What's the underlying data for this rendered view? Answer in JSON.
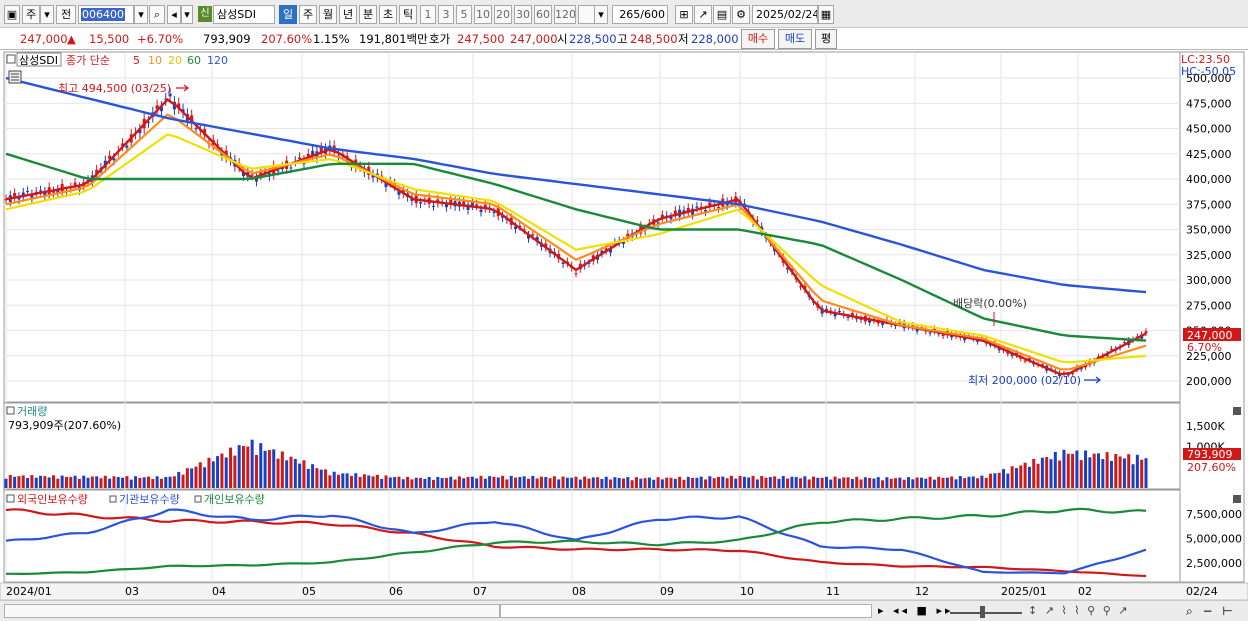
{
  "toolbar": {
    "market_label": "주",
    "prev_label": "전",
    "stock_code": "006400",
    "badge": "신",
    "stock_name": "삼성SDI",
    "periods": [
      "일",
      "주",
      "월",
      "년",
      "분",
      "초",
      "틱"
    ],
    "active_period": "일",
    "numbers": [
      "1",
      "3",
      "5",
      "10",
      "20",
      "30",
      "60",
      "120"
    ],
    "count_value": "265",
    "count_max": "/600",
    "date": "2025/02/24"
  },
  "quote": {
    "price": "247,000",
    "change": "15,500",
    "change_pct": "+6.70%",
    "volume": "793,909",
    "volume_ratio": "207.60%",
    "turnover_rate": "1.15%",
    "trade_value": "191,801백만",
    "ask_label": "호가",
    "ask_value": "247,500",
    "bid_value": "247,000",
    "open_label": "시",
    "open_value": "228,500",
    "high_label": "고",
    "high_value": "248,500",
    "low_label": "저",
    "low_value": "228,000",
    "buy_label": "매수",
    "sell_label": "매도",
    "eval_label": "평"
  },
  "price_panel": {
    "legend_name": "삼성SDI",
    "legend_close": "종가 단순",
    "legend_ma": [
      "5",
      "10",
      "20",
      "60",
      "120"
    ],
    "lc_label": "LC:23.50",
    "hc_label": "HC:-50.05",
    "high_note": "최고 494,500 (03/25)",
    "low_note": "최저 200,000 (02/10)",
    "dividend_note": "배당락(0.00%)",
    "current_price": "247,000",
    "current_pct": "6.70%",
    "y_ticks": [
      "500,000",
      "475,000",
      "450,000",
      "425,000",
      "400,000",
      "375,000",
      "350,000",
      "325,000",
      "300,000",
      "275,000",
      "250,000",
      "225,000",
      "200,000"
    ]
  },
  "volume_panel": {
    "title": "거래량",
    "value": "793,909주(207.60%)",
    "y_ticks": [
      "1,500K",
      "1,000K"
    ],
    "current_value": "793,909",
    "current_pct": "207.60%"
  },
  "holding_panel": {
    "legend": [
      "외국인보유수량",
      "기관보유수량",
      "개인보유수량"
    ],
    "y_ticks": [
      "7,500,000",
      "5,000,000",
      "2,500,000"
    ]
  },
  "x_axis": {
    "labels": [
      "2024/01",
      "03",
      "04",
      "05",
      "06",
      "07",
      "08",
      "09",
      "10",
      "11",
      "12",
      "2025/01",
      "02"
    ],
    "right_label": "02/24"
  },
  "colors": {
    "ma5": "#d01818",
    "ma10": "#ff8c1a",
    "ma20": "#f0e000",
    "ma60": "#1a8a3a",
    "ma120": "#2a55d8",
    "up": "#d01818",
    "down": "#1a3ec4"
  },
  "chart_data": {
    "type": "line",
    "x": [
      "2024/01",
      "2024/02",
      "2024/03",
      "2024/04",
      "2024/05",
      "2024/06",
      "2024/07",
      "2024/08",
      "2024/09",
      "2024/10",
      "2024/11",
      "2024/12",
      "2025/01",
      "2025/02",
      "2025/02/24"
    ],
    "series": [
      {
        "name": "5",
        "values": [
          380000,
          395000,
          480000,
          400000,
          430000,
          380000,
          370000,
          310000,
          360000,
          380000,
          270000,
          255000,
          240000,
          205000,
          247000
        ]
      },
      {
        "name": "10",
        "values": [
          375000,
          392000,
          465000,
          405000,
          425000,
          385000,
          375000,
          320000,
          355000,
          375000,
          280000,
          255000,
          242000,
          210000,
          235000
        ]
      },
      {
        "name": "20",
        "values": [
          370000,
          388000,
          445000,
          410000,
          420000,
          390000,
          378000,
          330000,
          345000,
          370000,
          295000,
          258000,
          245000,
          218000,
          225000
        ]
      },
      {
        "name": "60",
        "values": [
          425000,
          400000,
          400000,
          400000,
          415000,
          415000,
          395000,
          370000,
          350000,
          350000,
          335000,
          300000,
          262000,
          245000,
          240000
        ]
      },
      {
        "name": "120",
        "values": [
          500000,
          480000,
          460000,
          445000,
          430000,
          420000,
          405000,
          395000,
          385000,
          375000,
          358000,
          335000,
          310000,
          295000,
          288000
        ]
      }
    ],
    "volume_K": [
      320,
      300,
      280,
      1200,
      400,
      260,
      300,
      280,
      260,
      300,
      280,
      260,
      300,
      950,
      793.909
    ],
    "holdings": [
      {
        "name": "외국인보유수량",
        "values": [
          7900000,
          7300000,
          6800000,
          6700000,
          6500000,
          5500000,
          4200000,
          3900000,
          3900000,
          3800000,
          2600000,
          2200000,
          2100000,
          1700000,
          1200000
        ]
      },
      {
        "name": "기관보유수량",
        "values": [
          4700000,
          5600000,
          7900000,
          6900000,
          7400000,
          5500000,
          6800000,
          4800000,
          7000000,
          7200000,
          4200000,
          3900000,
          1600000,
          1500000,
          3800000
        ]
      },
      {
        "name": "개인보유수량",
        "values": [
          1400000,
          1600000,
          2200000,
          2300000,
          2600000,
          3600000,
          4600000,
          4700000,
          4400000,
          4800000,
          6700000,
          7000000,
          7300000,
          7900000,
          7700000
        ]
      }
    ],
    "ylim": [
      190000,
      510000
    ]
  }
}
